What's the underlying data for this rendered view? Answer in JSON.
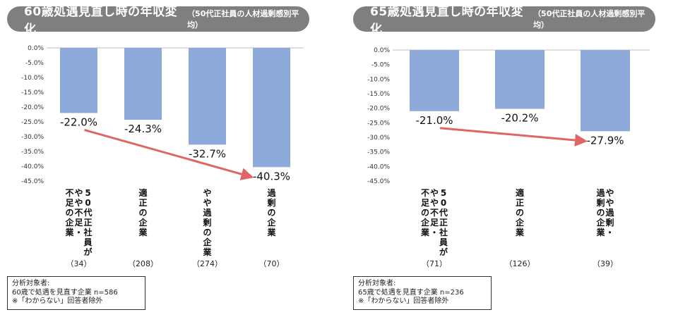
{
  "colors": {
    "bar": "#8eaadb",
    "arrow": "#e06666",
    "pill": "#7f7f7f",
    "axis": "#bfbfbf"
  },
  "chart_data": [
    {
      "type": "bar",
      "title": "60歳処遇見直し時の年収変化",
      "subtitle": "（50代正社員の人材過剰感別平均）",
      "categories": [
        "50代正社員がやや不足・不足の企業",
        "適正の企業",
        "やや過剰の企業",
        "過剰の企業"
      ],
      "category_lines": [
        [
          "5",
          "0",
          "代",
          "正",
          "社",
          "員",
          "が"
        ],
        [
          "や",
          "や",
          "不",
          "足",
          "・"
        ],
        [
          "不",
          "足",
          "の",
          "企",
          "業"
        ]
      ],
      "category_labels": [
        [
          [
            "5",
            "0",
            "代",
            "正",
            "社",
            "員",
            "が"
          ],
          [
            "や",
            "や",
            "不",
            "足",
            "・"
          ],
          [
            "不",
            "足",
            "の",
            "企",
            "業"
          ]
        ],
        [
          [
            "適",
            "正",
            "の",
            "企",
            "業"
          ]
        ],
        [
          [
            "や",
            "や",
            "過",
            "剰",
            "の",
            "企",
            "業"
          ]
        ],
        [
          [
            "過",
            "剰",
            "の",
            "企",
            "業"
          ]
        ]
      ],
      "counts": [
        "（34）",
        "（208）",
        "（274）",
        "（70）"
      ],
      "values": [
        -22.0,
        -24.3,
        -32.7,
        -40.3
      ],
      "value_labels": [
        "-22.0%",
        "-24.3%",
        "-32.7%",
        "-40.3%"
      ],
      "yticks": [
        "0.0%",
        "-5.0%",
        "-10.0%",
        "-15.0%",
        "-20.0%",
        "-25.0%",
        "-30.0%",
        "-35.0%",
        "-40.0%",
        "-45.0%"
      ],
      "ylim": [
        -45,
        0
      ],
      "grid": false,
      "note": [
        "分析対象者:",
        "60歳で処遇を見直す企業 n=586",
        "※「わからない」回答者除外"
      ]
    },
    {
      "type": "bar",
      "title": "65歳処遇見直し時の年収変化",
      "subtitle": "（50代正社員の人材過剰感別平均）",
      "categories": [
        "50代正社員がやや不足・不足の企業",
        "適正の企業",
        "やや過剰・過剰の企業"
      ],
      "category_labels": [
        [
          [
            "5",
            "0",
            "代",
            "正",
            "社",
            "員",
            "が"
          ],
          [
            "や",
            "や",
            "不",
            "足",
            "・"
          ],
          [
            "不",
            "足",
            "の",
            "企",
            "業"
          ]
        ],
        [
          [
            "適",
            "正",
            "の",
            "企",
            "業"
          ]
        ],
        [
          [
            "や",
            "や",
            "過",
            "剰",
            "・"
          ],
          [
            "過",
            "剰",
            "の",
            "企",
            "業"
          ]
        ]
      ],
      "counts": [
        "（71）",
        "（126）",
        "（39）"
      ],
      "values": [
        -21.0,
        -20.2,
        -27.9
      ],
      "value_labels": [
        "-21.0%",
        "-20.2%",
        "-27.9%"
      ],
      "yticks": [
        "0.0%",
        "-5.0%",
        "-10.0%",
        "-15.0%",
        "-20.0%",
        "-25.0%",
        "-30.0%",
        "-35.0%",
        "-40.0%",
        "-45.0%"
      ],
      "ylim": [
        -45,
        0
      ],
      "grid": false,
      "note": [
        "分析対象者:",
        "65歳で処遇を見直す企業 n=236",
        "※「わからない」回答者除外"
      ]
    }
  ]
}
